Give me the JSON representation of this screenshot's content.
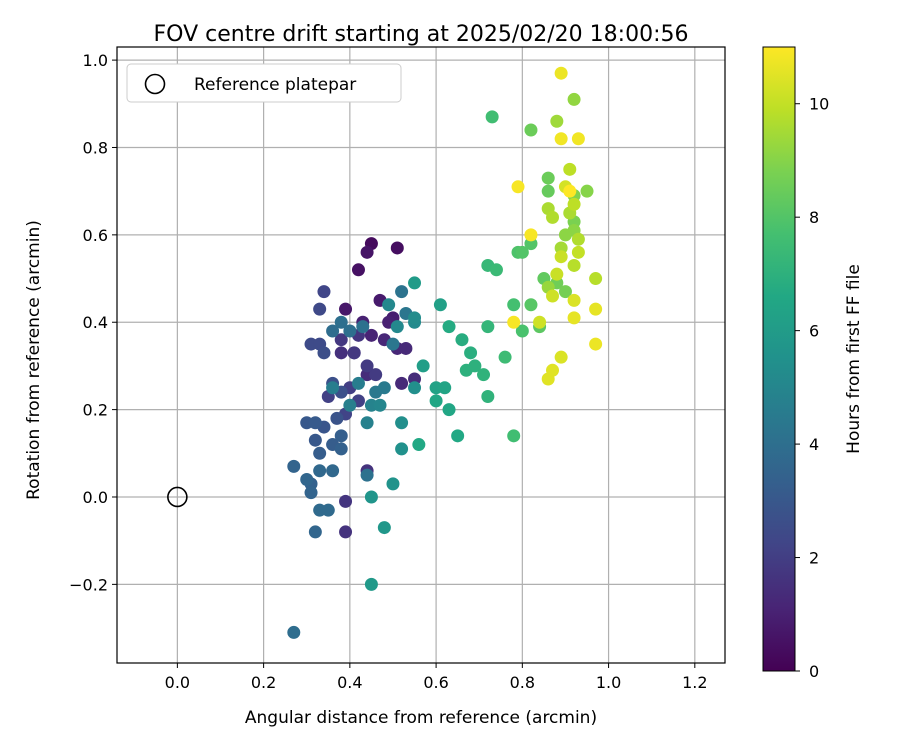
{
  "chart_data": {
    "type": "scatter",
    "title": "FOV centre drift starting at 2025/02/20 18:00:56",
    "xlabel": "Angular distance from reference (arcmin)",
    "ylabel": "Rotation from reference (arcmin)",
    "xlim": [
      -0.14,
      1.27
    ],
    "ylim": [
      -0.38,
      1.03
    ],
    "xticks": [
      0.0,
      0.2,
      0.4,
      0.6,
      0.8,
      1.0,
      1.2
    ],
    "xtick_labels": [
      "0.0",
      "0.2",
      "0.4",
      "0.6",
      "0.8",
      "1.0",
      "1.2"
    ],
    "yticks": [
      -0.2,
      0.0,
      0.2,
      0.4,
      0.6,
      0.8,
      1.0
    ],
    "ytick_labels": [
      "−0.2",
      "0.0",
      "0.2",
      "0.4",
      "0.6",
      "0.8",
      "1.0"
    ],
    "grid": true,
    "legend": {
      "placement": "top-left",
      "entries": [
        {
          "label": "Reference platepar",
          "marker": "hollow-circle"
        }
      ]
    },
    "reference_point": {
      "x": 0.0,
      "y": 0.0
    },
    "colorbar": {
      "label": "Hours from first FF file",
      "range": [
        0,
        11
      ],
      "ticks": [
        0,
        2,
        4,
        6,
        8,
        10
      ],
      "tick_labels": [
        "0",
        "2",
        "4",
        "6",
        "8",
        "10"
      ],
      "colormap": "viridis"
    },
    "series": [
      {
        "points": [
          [
            0.45,
            0.58,
            0.3
          ],
          [
            0.51,
            0.57,
            0.4
          ],
          [
            0.42,
            0.52,
            0.5
          ],
          [
            0.44,
            0.56,
            0.6
          ],
          [
            0.39,
            0.43,
            0.7
          ],
          [
            0.47,
            0.45,
            0.8
          ],
          [
            0.5,
            0.41,
            0.9
          ],
          [
            0.49,
            0.4,
            1.0
          ],
          [
            0.43,
            0.4,
            1.0
          ],
          [
            0.45,
            0.37,
            1.1
          ],
          [
            0.48,
            0.36,
            1.2
          ],
          [
            0.51,
            0.34,
            1.2
          ],
          [
            0.53,
            0.34,
            1.3
          ],
          [
            0.52,
            0.26,
            1.3
          ],
          [
            0.55,
            0.27,
            1.4
          ],
          [
            0.44,
            0.28,
            1.4
          ],
          [
            0.41,
            0.33,
            1.5
          ],
          [
            0.38,
            0.33,
            1.5
          ],
          [
            0.44,
            0.06,
            1.6
          ],
          [
            0.39,
            -0.08,
            1.6
          ],
          [
            0.39,
            -0.01,
            1.7
          ],
          [
            0.42,
            0.37,
            1.7
          ],
          [
            0.38,
            0.36,
            1.8
          ],
          [
            0.41,
            0.33,
            1.8
          ],
          [
            0.46,
            0.28,
            1.9
          ],
          [
            0.44,
            0.3,
            1.9
          ],
          [
            0.4,
            0.25,
            2.0
          ],
          [
            0.42,
            0.22,
            2.1
          ],
          [
            0.35,
            0.23,
            2.1
          ],
          [
            0.39,
            0.19,
            2.2
          ],
          [
            0.34,
            0.47,
            2.3
          ],
          [
            0.33,
            0.43,
            2.4
          ],
          [
            0.31,
            0.35,
            2.5
          ],
          [
            0.33,
            0.35,
            2.5
          ],
          [
            0.34,
            0.33,
            2.6
          ],
          [
            0.36,
            0.26,
            2.7
          ],
          [
            0.38,
            0.24,
            2.7
          ],
          [
            0.37,
            0.18,
            2.8
          ],
          [
            0.34,
            0.16,
            2.9
          ],
          [
            0.32,
            0.13,
            3.0
          ],
          [
            0.3,
            0.17,
            3.0
          ],
          [
            0.32,
            0.17,
            3.1
          ],
          [
            0.33,
            0.1,
            3.2
          ],
          [
            0.36,
            0.12,
            3.2
          ],
          [
            0.38,
            0.14,
            3.3
          ],
          [
            0.38,
            0.11,
            3.4
          ],
          [
            0.31,
            0.03,
            3.4
          ],
          [
            0.31,
            0.01,
            3.5
          ],
          [
            0.27,
            0.07,
            3.5
          ],
          [
            0.3,
            0.04,
            3.6
          ],
          [
            0.32,
            -0.08,
            3.6
          ],
          [
            0.36,
            0.06,
            3.7
          ],
          [
            0.33,
            0.06,
            3.7
          ],
          [
            0.33,
            -0.03,
            3.8
          ],
          [
            0.35,
            -0.03,
            3.8
          ],
          [
            0.27,
            -0.31,
            3.9
          ],
          [
            0.36,
            0.38,
            3.9
          ],
          [
            0.38,
            0.4,
            4.0
          ],
          [
            0.4,
            0.38,
            4.0
          ],
          [
            0.43,
            0.39,
            4.1
          ],
          [
            0.44,
            0.05,
            4.1
          ],
          [
            0.52,
            0.47,
            4.2
          ],
          [
            0.53,
            0.42,
            4.3
          ],
          [
            0.5,
            0.35,
            4.3
          ],
          [
            0.46,
            0.24,
            4.4
          ],
          [
            0.48,
            0.25,
            4.5
          ],
          [
            0.42,
            0.26,
            4.6
          ],
          [
            0.36,
            0.25,
            4.6
          ],
          [
            0.4,
            0.21,
            4.7
          ],
          [
            0.44,
            0.17,
            4.8
          ],
          [
            0.45,
            0.21,
            4.9
          ],
          [
            0.47,
            0.21,
            5.0
          ],
          [
            0.49,
            0.44,
            5.1
          ],
          [
            0.51,
            0.39,
            5.1
          ],
          [
            0.55,
            0.4,
            5.2
          ],
          [
            0.55,
            0.41,
            5.3
          ],
          [
            0.55,
            0.25,
            5.4
          ],
          [
            0.52,
            0.17,
            5.4
          ],
          [
            0.52,
            0.11,
            5.5
          ],
          [
            0.5,
            0.03,
            5.6
          ],
          [
            0.45,
            0.0,
            5.7
          ],
          [
            0.48,
            -0.07,
            5.8
          ],
          [
            0.45,
            -0.2,
            5.9
          ],
          [
            0.55,
            0.49,
            6.0
          ],
          [
            0.57,
            0.3,
            6.1
          ],
          [
            0.61,
            0.44,
            6.2
          ],
          [
            0.6,
            0.25,
            6.3
          ],
          [
            0.62,
            0.25,
            6.4
          ],
          [
            0.6,
            0.22,
            6.5
          ],
          [
            0.63,
            0.2,
            6.5
          ],
          [
            0.65,
            0.14,
            6.6
          ],
          [
            0.56,
            0.12,
            6.6
          ],
          [
            0.63,
            0.39,
            6.7
          ],
          [
            0.66,
            0.36,
            6.8
          ],
          [
            0.68,
            0.33,
            6.9
          ],
          [
            0.69,
            0.3,
            7.0
          ],
          [
            0.67,
            0.29,
            7.0
          ],
          [
            0.71,
            0.28,
            7.1
          ],
          [
            0.72,
            0.23,
            7.1
          ],
          [
            0.72,
            0.39,
            7.2
          ],
          [
            0.72,
            0.53,
            7.3
          ],
          [
            0.74,
            0.52,
            7.4
          ],
          [
            0.76,
            0.32,
            7.5
          ],
          [
            0.78,
            0.14,
            7.6
          ],
          [
            0.73,
            0.87,
            7.6
          ],
          [
            0.78,
            0.44,
            7.7
          ],
          [
            0.8,
            0.38,
            7.8
          ],
          [
            0.79,
            0.56,
            7.9
          ],
          [
            0.8,
            0.56,
            8.0
          ],
          [
            0.82,
            0.58,
            8.0
          ],
          [
            0.82,
            0.44,
            8.1
          ],
          [
            0.84,
            0.39,
            8.2
          ],
          [
            0.85,
            0.5,
            8.3
          ],
          [
            0.86,
            0.7,
            8.4
          ],
          [
            0.82,
            0.84,
            8.5
          ],
          [
            0.86,
            0.73,
            8.5
          ],
          [
            0.88,
            0.49,
            8.6
          ],
          [
            0.9,
            0.47,
            8.7
          ],
          [
            0.92,
            0.63,
            8.8
          ],
          [
            0.92,
            0.69,
            8.9
          ],
          [
            0.95,
            0.7,
            9.0
          ],
          [
            0.92,
            0.61,
            9.1
          ],
          [
            0.9,
            0.6,
            9.1
          ],
          [
            0.92,
            0.91,
            9.2
          ],
          [
            0.86,
            0.48,
            9.3
          ],
          [
            0.88,
            0.86,
            9.4
          ],
          [
            0.89,
            0.57,
            9.5
          ],
          [
            0.91,
            0.65,
            9.6
          ],
          [
            0.86,
            0.66,
            9.6
          ],
          [
            0.93,
            0.59,
            9.7
          ],
          [
            0.87,
            0.64,
            9.7
          ],
          [
            0.97,
            0.5,
            9.8
          ],
          [
            0.92,
            0.53,
            9.8
          ],
          [
            0.91,
            0.75,
            9.9
          ],
          [
            0.92,
            0.67,
            9.9
          ],
          [
            0.93,
            0.56,
            10.0
          ],
          [
            0.89,
            0.55,
            10.1
          ],
          [
            0.88,
            0.51,
            10.1
          ],
          [
            0.84,
            0.4,
            10.2
          ],
          [
            0.87,
            0.46,
            10.2
          ],
          [
            0.9,
            0.71,
            10.3
          ],
          [
            0.92,
            0.45,
            10.4
          ],
          [
            0.89,
            0.32,
            10.4
          ],
          [
            0.86,
            0.27,
            10.5
          ],
          [
            0.87,
            0.29,
            10.5
          ],
          [
            0.92,
            0.41,
            10.6
          ],
          [
            0.97,
            0.43,
            10.6
          ],
          [
            0.97,
            0.35,
            10.7
          ],
          [
            0.89,
            0.97,
            10.7
          ],
          [
            0.89,
            0.82,
            10.8
          ],
          [
            0.93,
            0.82,
            10.8
          ],
          [
            0.79,
            0.71,
            10.9
          ],
          [
            0.82,
            0.6,
            10.9
          ],
          [
            0.78,
            0.4,
            10.9
          ],
          [
            0.91,
            0.7,
            11.0
          ]
        ]
      }
    ]
  }
}
